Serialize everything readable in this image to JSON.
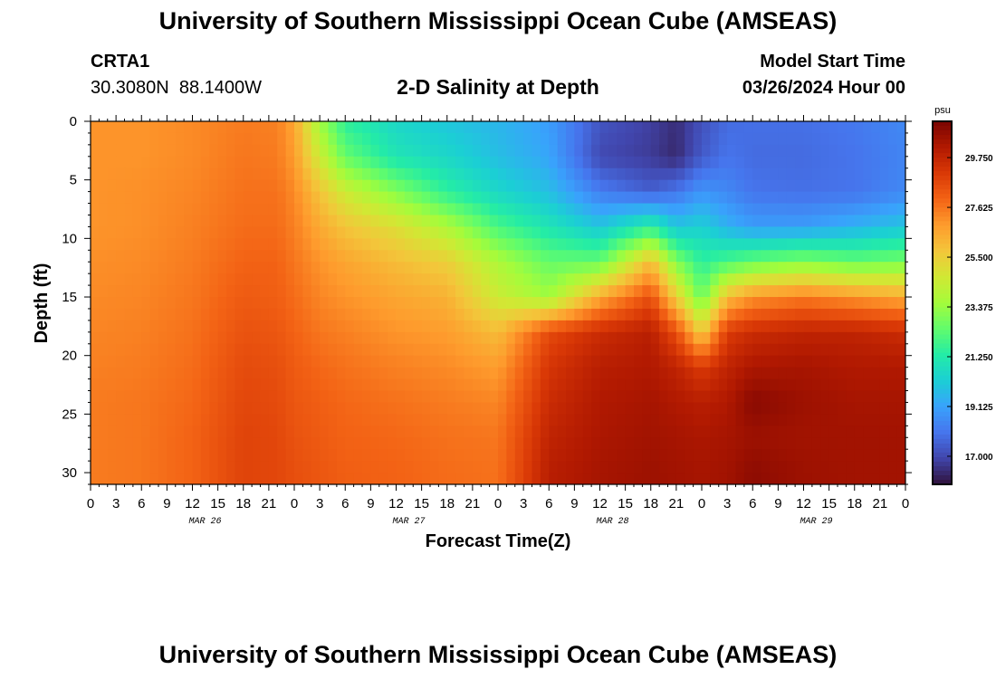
{
  "header": {
    "title": "University of Southern Mississippi Ocean Cube (AMSEAS)",
    "station": "CRTA1",
    "coords": "30.3080N  88.1400W",
    "subtitle": "2-D Salinity at Depth",
    "model_start_label": "Model Start Time",
    "model_start_value": "03/26/2024 Hour 00"
  },
  "footer": {
    "title": "University of Southern Mississippi Ocean Cube (AMSEAS)"
  },
  "colors": {
    "scale": [
      "#30123b",
      "#4145ab",
      "#4675ed",
      "#39a2fc",
      "#1bcfd4",
      "#24eca6",
      "#61fc6c",
      "#a4fc3b",
      "#d1e834",
      "#f3c63a",
      "#fe9b2d",
      "#f36315",
      "#d93806",
      "#b11901",
      "#7a0402"
    ]
  },
  "chart_data": {
    "type": "heatmap",
    "title": "2-D Salinity at Depth",
    "xlabel": "Forecast Time(Z)",
    "ylabel": "Depth (ft)",
    "x_hours_from_start": [
      0,
      96
    ],
    "x_tick_labels": [
      "0",
      "3",
      "6",
      "9",
      "12",
      "15",
      "18",
      "21",
      "0",
      "3",
      "6",
      "9",
      "12",
      "15",
      "18",
      "21",
      "0",
      "3",
      "6",
      "9",
      "12",
      "15",
      "18",
      "21",
      "0",
      "3",
      "6",
      "9",
      "12",
      "15",
      "18",
      "21",
      "0"
    ],
    "date_labels": [
      "MAR 26",
      "MAR 27",
      "MAR 28",
      "MAR 29"
    ],
    "ylim": [
      0,
      31
    ],
    "y_ticks": [
      0,
      5,
      10,
      15,
      20,
      25,
      30
    ],
    "colorbar": {
      "unit": "psu",
      "range": [
        15.8,
        31.3
      ],
      "ticks": [
        17.0,
        19.125,
        21.25,
        23.375,
        25.5,
        27.625,
        29.75
      ],
      "tick_labels": [
        "17.000",
        "19.125",
        "21.250",
        "23.375",
        "25.500",
        "27.625",
        "29.750"
      ]
    },
    "field": {
      "depths_ft": [
        0,
        3,
        6,
        9,
        12,
        15,
        18,
        21,
        24,
        27,
        30
      ],
      "hours": [
        0,
        6,
        12,
        18,
        22,
        24,
        27,
        30,
        36,
        42,
        48,
        54,
        60,
        66,
        69,
        72,
        75,
        78,
        84,
        90,
        96
      ],
      "salinity_psu": [
        [
          27.0,
          27.0,
          27.2,
          27.5,
          27.4,
          26.6,
          23.5,
          21.5,
          20.5,
          20.0,
          19.6,
          19.0,
          17.3,
          16.8,
          16.4,
          17.2,
          17.8,
          17.9,
          17.9,
          18.1,
          18.5
        ],
        [
          27.0,
          27.0,
          27.2,
          27.6,
          27.5,
          26.8,
          24.5,
          22.5,
          21.0,
          20.5,
          19.8,
          19.2,
          17.0,
          16.7,
          16.3,
          17.4,
          18.0,
          17.8,
          17.8,
          18.0,
          18.4
        ],
        [
          27.0,
          27.1,
          27.3,
          27.7,
          27.7,
          27.2,
          25.8,
          24.5,
          23.0,
          21.5,
          20.5,
          19.8,
          18.2,
          17.5,
          18.0,
          18.8,
          18.5,
          18.0,
          17.9,
          18.0,
          18.5
        ],
        [
          27.0,
          27.1,
          27.4,
          27.8,
          27.8,
          27.4,
          26.5,
          25.8,
          25.0,
          23.8,
          22.0,
          21.0,
          20.0,
          21.5,
          20.0,
          20.3,
          19.5,
          19.0,
          19.0,
          19.5,
          20.0
        ],
        [
          27.1,
          27.2,
          27.5,
          28.0,
          28.0,
          27.6,
          27.0,
          26.6,
          26.0,
          25.5,
          23.8,
          22.5,
          22.5,
          26.0,
          23.0,
          21.5,
          22.0,
          22.5,
          23.0,
          22.5,
          22.8
        ],
        [
          27.2,
          27.3,
          27.6,
          28.2,
          28.1,
          27.8,
          27.3,
          27.0,
          26.6,
          26.3,
          24.5,
          23.5,
          26.5,
          28.5,
          25.5,
          22.5,
          26.0,
          27.0,
          27.5,
          27.0,
          26.5
        ],
        [
          27.3,
          27.4,
          27.7,
          28.4,
          28.3,
          28.0,
          27.6,
          27.4,
          27.0,
          26.8,
          26.0,
          28.6,
          29.5,
          30.0,
          28.5,
          25.5,
          29.0,
          29.5,
          29.8,
          29.8,
          29.5
        ],
        [
          27.4,
          27.5,
          27.8,
          28.6,
          28.5,
          28.2,
          27.9,
          27.7,
          27.4,
          27.2,
          26.8,
          29.2,
          30.0,
          30.2,
          29.8,
          29.0,
          29.8,
          30.3,
          30.4,
          30.2,
          30.2
        ],
        [
          27.5,
          27.6,
          27.9,
          28.7,
          28.6,
          28.3,
          28.1,
          27.9,
          27.7,
          27.5,
          27.3,
          29.5,
          30.2,
          30.4,
          30.2,
          30.0,
          30.2,
          31.0,
          30.6,
          30.4,
          30.4
        ],
        [
          27.5,
          27.6,
          28.0,
          28.8,
          28.7,
          28.4,
          28.2,
          28.0,
          27.9,
          27.7,
          27.6,
          29.8,
          30.3,
          30.5,
          30.4,
          30.3,
          30.4,
          30.6,
          30.5,
          30.5,
          30.5
        ],
        [
          27.5,
          27.6,
          28.0,
          28.8,
          28.7,
          28.5,
          28.3,
          28.1,
          28.0,
          27.8,
          27.7,
          30.0,
          30.4,
          30.6,
          30.5,
          30.4,
          30.5,
          30.9,
          30.6,
          30.5,
          30.5
        ]
      ]
    }
  }
}
